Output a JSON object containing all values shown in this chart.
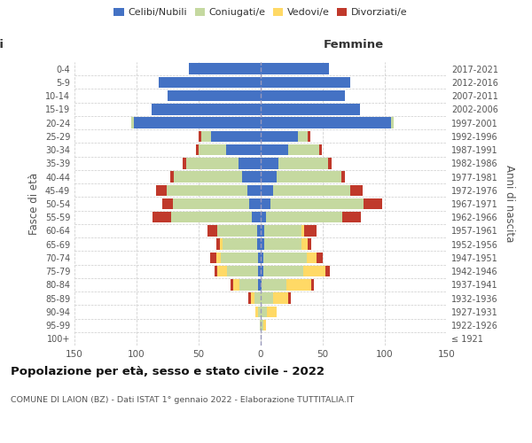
{
  "age_groups": [
    "100+",
    "95-99",
    "90-94",
    "85-89",
    "80-84",
    "75-79",
    "70-74",
    "65-69",
    "60-64",
    "55-59",
    "50-54",
    "45-49",
    "40-44",
    "35-39",
    "30-34",
    "25-29",
    "20-24",
    "15-19",
    "10-14",
    "5-9",
    "0-4"
  ],
  "birth_years": [
    "≤ 1921",
    "1922-1926",
    "1927-1931",
    "1932-1936",
    "1937-1941",
    "1942-1946",
    "1947-1951",
    "1952-1956",
    "1957-1961",
    "1962-1966",
    "1967-1971",
    "1972-1976",
    "1977-1981",
    "1982-1986",
    "1987-1991",
    "1992-1996",
    "1997-2001",
    "2002-2006",
    "2007-2011",
    "2012-2016",
    "2017-2021"
  ],
  "males": {
    "celibe": [
      0,
      0,
      0,
      0,
      2,
      2,
      2,
      3,
      3,
      7,
      9,
      11,
      15,
      18,
      28,
      40,
      102,
      88,
      75,
      82,
      58
    ],
    "coniugato": [
      0,
      1,
      2,
      5,
      15,
      25,
      30,
      28,
      32,
      65,
      62,
      65,
      55,
      42,
      22,
      8,
      2,
      0,
      0,
      0,
      0
    ],
    "vedovo": [
      0,
      0,
      2,
      3,
      5,
      8,
      4,
      2,
      0,
      0,
      0,
      0,
      0,
      0,
      0,
      0,
      0,
      0,
      0,
      0,
      0
    ],
    "divorziato": [
      0,
      0,
      0,
      2,
      2,
      2,
      5,
      3,
      8,
      15,
      8,
      8,
      3,
      3,
      2,
      2,
      0,
      0,
      0,
      0,
      0
    ]
  },
  "females": {
    "nubile": [
      0,
      0,
      0,
      0,
      1,
      2,
      2,
      3,
      3,
      4,
      8,
      10,
      13,
      14,
      22,
      30,
      105,
      80,
      68,
      72,
      55
    ],
    "coniugata": [
      0,
      2,
      5,
      10,
      20,
      32,
      35,
      30,
      30,
      62,
      75,
      62,
      52,
      40,
      25,
      8,
      2,
      0,
      0,
      0,
      0
    ],
    "vedova": [
      0,
      2,
      8,
      12,
      20,
      18,
      8,
      5,
      2,
      0,
      0,
      0,
      0,
      0,
      0,
      0,
      0,
      0,
      0,
      0,
      0
    ],
    "divorziata": [
      0,
      0,
      0,
      2,
      2,
      4,
      5,
      3,
      10,
      15,
      15,
      10,
      3,
      3,
      2,
      2,
      0,
      0,
      0,
      0,
      0
    ]
  },
  "colors": {
    "celibe": "#4472c4",
    "coniugato": "#c5d9a0",
    "vedovo": "#ffd966",
    "divorziato": "#c0392b"
  },
  "xlim": 150,
  "title": "Popolazione per età, sesso e stato civile - 2022",
  "subtitle": "COMUNE DI LAION (BZ) - Dati ISTAT 1° gennaio 2022 - Elaborazione TUTTITALIA.IT",
  "ylabel_left": "Fasce di età",
  "ylabel_right": "Anni di nascita",
  "xlabel_right": "Femmine",
  "bg_color": "#ffffff",
  "grid_color": "#cccccc"
}
